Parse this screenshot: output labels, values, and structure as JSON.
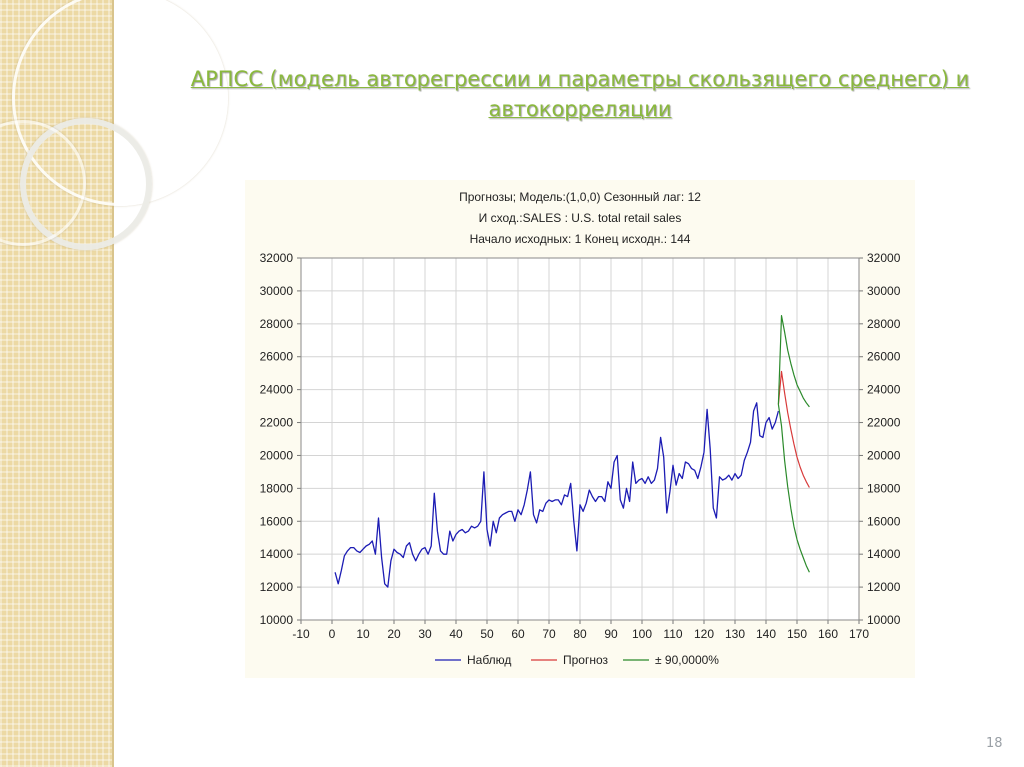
{
  "slide": {
    "title_line1": "АРПСС (модель авторегрессии и параметры скользящего среднего)  и",
    "title_line2": "автокорреляции",
    "page_number": "18",
    "accent_color": "#8ab83e"
  },
  "chart_data": {
    "type": "line",
    "title_lines": [
      "Прогнозы; Модель:(1,0,0) Сезонный лаг: 12",
      "И сход.:SALES   : U.S. total retail sales",
      "Начало исходных: 1        Конец исходн.: 144"
    ],
    "xlim": [
      -10,
      170
    ],
    "ylim": [
      10000,
      32000
    ],
    "x_ticks": [
      "-10",
      "0",
      "10",
      "20",
      "30",
      "40",
      "50",
      "60",
      "70",
      "80",
      "90",
      "100",
      "110",
      "120",
      "130",
      "140",
      "150",
      "160",
      "170"
    ],
    "y_ticks": [
      "10000",
      "12000",
      "14000",
      "16000",
      "18000",
      "20000",
      "22000",
      "24000",
      "26000",
      "28000",
      "30000",
      "32000"
    ],
    "grid": true,
    "legend_position": "bottom",
    "series": [
      {
        "name": "Наблюд",
        "color": "#1c1cb4",
        "x_start": 1,
        "values": [
          12900,
          12200,
          13000,
          13900,
          14200,
          14400,
          14400,
          14200,
          14100,
          14300,
          14500,
          14600,
          14800,
          14000,
          16200,
          13800,
          12200,
          12000,
          13600,
          14300,
          14100,
          14000,
          13800,
          14500,
          14700,
          14000,
          13600,
          14000,
          14300,
          14400,
          14000,
          14500,
          17700,
          15400,
          14200,
          14000,
          14000,
          15400,
          14800,
          15200,
          15400,
          15500,
          15300,
          15400,
          15700,
          15600,
          15700,
          16000,
          19000,
          15500,
          14500,
          16000,
          15300,
          16200,
          16400,
          16500,
          16600,
          16600,
          16000,
          16700,
          16400,
          17000,
          17900,
          19000,
          16400,
          15900,
          16700,
          16600,
          17100,
          17300,
          17200,
          17300,
          17300,
          17000,
          17600,
          17500,
          18300,
          16000,
          14200,
          17000,
          16600,
          17100,
          17900,
          17500,
          17200,
          17500,
          17500,
          17200,
          18400,
          18000,
          19600,
          20000,
          17300,
          16800,
          18000,
          17200,
          19600,
          18300,
          18500,
          18600,
          18300,
          18700,
          18300,
          18500,
          19200,
          21100,
          19900,
          16500,
          17800,
          19400,
          18200,
          18900,
          18600,
          19600,
          19500,
          19200,
          19100,
          18600,
          19300,
          20200,
          22800,
          20400,
          16800,
          16200,
          18700,
          18500,
          18600,
          18800,
          18500,
          18900,
          18600,
          18800,
          19700,
          20200,
          20800,
          22700,
          23200,
          21200,
          21100,
          22000,
          22300,
          21600,
          22000,
          22700
        ]
      },
      {
        "name": "Прогноз",
        "color": "#d83a3a",
        "x": [
          144,
          145,
          146,
          147,
          148,
          149,
          150,
          151,
          152,
          153,
          154
        ],
        "values": [
          23100,
          25100,
          23800,
          22600,
          21600,
          20700,
          19900,
          19300,
          18800,
          18400,
          18050
        ]
      },
      {
        "name": "± 90,0000%",
        "color": "#2b8a2b",
        "upper_x": [
          144,
          145,
          146,
          147,
          148,
          149,
          150,
          151,
          152,
          153,
          154
        ],
        "upper": [
          23100,
          28500,
          27500,
          26400,
          25600,
          24900,
          24300,
          23900,
          23500,
          23200,
          22950
        ],
        "lower_x": [
          144,
          145,
          146,
          147,
          148,
          149,
          150,
          151,
          152,
          153,
          154
        ],
        "lower": [
          23100,
          21800,
          19700,
          18100,
          16800,
          15700,
          14900,
          14300,
          13800,
          13300,
          12900
        ]
      }
    ]
  }
}
